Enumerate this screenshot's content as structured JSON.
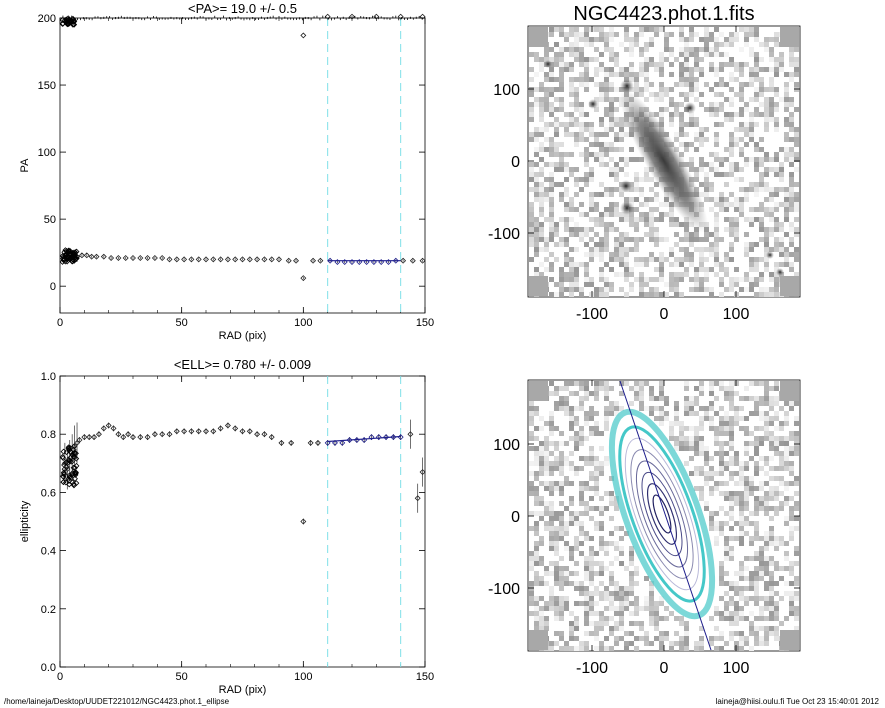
{
  "footer": {
    "left": "/home/laineja/Desktop/UUDET221012/NGC4423.phot.1_ellipse",
    "right": "laineja@hiisi.oulu.fi  Tue Oct 23 15:40:01 2012"
  },
  "images": {
    "top_title": "NGC4423.phot.1.fits",
    "x_ticks": [
      "-100",
      "0",
      "100"
    ],
    "y_ticks": [
      "100",
      "0",
      "-100"
    ]
  },
  "chart_data": [
    {
      "type": "scatter",
      "title": "<PA>=  19.0 +/-   0.5",
      "xlabel": "RAD (pix)",
      "ylabel": "PA",
      "xlim": [
        0,
        150
      ],
      "ylim": [
        -20,
        200
      ],
      "xticks": [
        "0",
        "50",
        "100",
        "150"
      ],
      "yticks": [
        "0",
        "50",
        "100",
        "150",
        "200"
      ],
      "vlines": [
        110,
        140
      ],
      "fit_range": [
        110,
        140
      ],
      "points": [
        [
          3,
          22
        ],
        [
          5,
          22
        ],
        [
          7,
          22
        ],
        [
          9,
          23
        ],
        [
          11,
          23
        ],
        [
          13,
          22
        ],
        [
          15,
          22
        ],
        [
          18,
          22
        ],
        [
          21,
          21
        ],
        [
          24,
          21
        ],
        [
          27,
          21
        ],
        [
          30,
          21
        ],
        [
          33,
          21
        ],
        [
          36,
          21
        ],
        [
          39,
          21
        ],
        [
          42,
          21
        ],
        [
          45,
          20
        ],
        [
          48,
          20
        ],
        [
          51,
          20
        ],
        [
          54,
          20
        ],
        [
          57,
          20
        ],
        [
          60,
          20
        ],
        [
          63,
          20
        ],
        [
          66,
          20
        ],
        [
          69,
          20
        ],
        [
          72,
          20
        ],
        [
          75,
          20
        ],
        [
          78,
          20
        ],
        [
          81,
          20
        ],
        [
          84,
          20
        ],
        [
          87,
          20
        ],
        [
          90,
          20
        ],
        [
          94,
          19
        ],
        [
          97,
          19
        ],
        [
          100,
          6
        ],
        [
          104,
          19
        ],
        [
          107,
          19
        ],
        [
          111,
          19
        ],
        [
          114,
          18
        ],
        [
          117,
          18
        ],
        [
          120,
          18
        ],
        [
          123,
          18
        ],
        [
          126,
          18
        ],
        [
          129,
          18
        ],
        [
          132,
          18
        ],
        [
          135,
          18
        ],
        [
          138,
          19
        ],
        [
          141,
          19
        ],
        [
          145,
          19
        ],
        [
          149,
          19
        ]
      ],
      "upper_points": [
        [
          100,
          187
        ],
        [
          110,
          201
        ],
        [
          120,
          201
        ],
        [
          130,
          201
        ],
        [
          140,
          201
        ],
        [
          149,
          201
        ]
      ]
    },
    {
      "type": "scatter",
      "title": "<ELL>= 0.780 +/-  0.009",
      "xlabel": "RAD (pix)",
      "ylabel": "ellipticity",
      "xlim": [
        0,
        150
      ],
      "ylim": [
        0.0,
        1.0
      ],
      "xticks": [
        "0",
        "50",
        "100",
        "150"
      ],
      "yticks": [
        "0.0",
        "0.2",
        "0.4",
        "0.6",
        "0.8",
        "1.0"
      ],
      "vlines": [
        110,
        140
      ],
      "fit_range": [
        110,
        140
      ],
      "points": [
        [
          2,
          0.7
        ],
        [
          3,
          0.68
        ],
        [
          4,
          0.71
        ],
        [
          5,
          0.73
        ],
        [
          6,
          0.76
        ],
        [
          7,
          0.77
        ],
        [
          8,
          0.78
        ],
        [
          10,
          0.79
        ],
        [
          12,
          0.79
        ],
        [
          14,
          0.79
        ],
        [
          16,
          0.8
        ],
        [
          18,
          0.82
        ],
        [
          20,
          0.83
        ],
        [
          22,
          0.82
        ],
        [
          24,
          0.8
        ],
        [
          26,
          0.79
        ],
        [
          28,
          0.8
        ],
        [
          30,
          0.79
        ],
        [
          33,
          0.79
        ],
        [
          36,
          0.79
        ],
        [
          39,
          0.8
        ],
        [
          42,
          0.8
        ],
        [
          45,
          0.8
        ],
        [
          48,
          0.81
        ],
        [
          51,
          0.81
        ],
        [
          54,
          0.81
        ],
        [
          57,
          0.81
        ],
        [
          60,
          0.81
        ],
        [
          63,
          0.81
        ],
        [
          66,
          0.82
        ],
        [
          69,
          0.83
        ],
        [
          72,
          0.82
        ],
        [
          75,
          0.81
        ],
        [
          78,
          0.81
        ],
        [
          81,
          0.8
        ],
        [
          84,
          0.8
        ],
        [
          87,
          0.79
        ],
        [
          91,
          0.77
        ],
        [
          95,
          0.77
        ],
        [
          100,
          0.5
        ],
        [
          103,
          0.77
        ],
        [
          106,
          0.77
        ],
        [
          110,
          0.77
        ],
        [
          113,
          0.77
        ],
        [
          116,
          0.77
        ],
        [
          119,
          0.78
        ],
        [
          122,
          0.78
        ],
        [
          125,
          0.78
        ],
        [
          128,
          0.79
        ],
        [
          131,
          0.79
        ],
        [
          134,
          0.79
        ],
        [
          137,
          0.79
        ],
        [
          140,
          0.79
        ],
        [
          144,
          0.8
        ],
        [
          147,
          0.58
        ],
        [
          149,
          0.67
        ]
      ],
      "fit_line": [
        [
          110,
          0.775
        ],
        [
          140,
          0.792
        ]
      ]
    }
  ]
}
